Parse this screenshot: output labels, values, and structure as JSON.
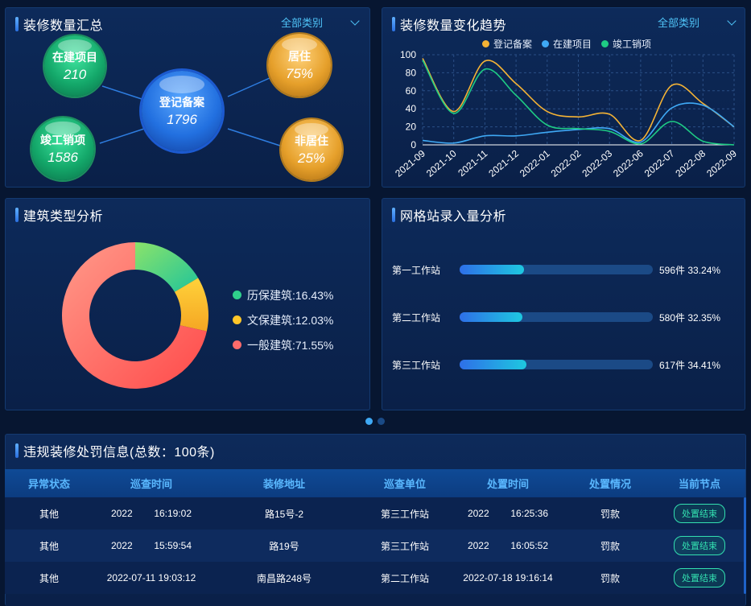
{
  "summary": {
    "title": "装修数量汇总",
    "filter": "全部类别",
    "center": {
      "label": "登记备案",
      "value": "1796"
    },
    "in_progress": {
      "label": "在建项目",
      "value": "210"
    },
    "completed": {
      "label": "竣工销项",
      "value": "1586"
    },
    "resident": {
      "label": "居住",
      "value": "75%"
    },
    "non_resident": {
      "label": "非居住",
      "value": "25%"
    }
  },
  "trend": {
    "title": "装修数量变化趋势",
    "filter": "全部类别",
    "legend": [
      "登记备案",
      "在建项目",
      "竣工销项"
    ],
    "colors": [
      "#f5b335",
      "#3fa9f5",
      "#1ecb84"
    ]
  },
  "chart_data": [
    {
      "type": "line",
      "x": [
        "2021-09",
        "2021-10",
        "2021-11",
        "2021-12",
        "2022-01",
        "2022-02",
        "2022-03",
        "2022-06",
        "2022-07",
        "2022-08",
        "2022-09"
      ],
      "series": [
        {
          "name": "登记备案",
          "values": [
            96,
            37,
            93,
            68,
            37,
            31,
            34,
            5,
            66,
            46,
            20
          ]
        },
        {
          "name": "在建项目",
          "values": [
            5,
            2,
            10,
            10,
            14,
            17,
            18,
            3,
            41,
            44,
            20
          ]
        },
        {
          "name": "竣工销项",
          "values": [
            94,
            35,
            84,
            55,
            22,
            18,
            15,
            1,
            26,
            4,
            0
          ]
        }
      ],
      "ylim": [
        0,
        100
      ],
      "yticks": [
        "0",
        "20",
        "40",
        "60",
        "80",
        "100"
      ],
      "grid": true,
      "legend_position": "top"
    },
    {
      "type": "pie",
      "labels": [
        "历保建筑",
        "文保建筑",
        "一般建筑"
      ],
      "values": [
        16.43,
        12.03,
        71.55
      ],
      "donut": true
    }
  ],
  "building": {
    "title": "建筑类型分析",
    "legend": [
      {
        "label": "历保建筑:16.43%",
        "color": "#2fd08c"
      },
      {
        "label": "文保建筑:12.03%",
        "color": "#ffc629"
      },
      {
        "label": "一般建筑:71.55%",
        "color": "#ff6b6b"
      }
    ]
  },
  "stations": {
    "title": "网格站录入量分析",
    "rows": [
      {
        "name": "第一工作站",
        "value": "596件 33.24%",
        "ratio": 0.3324
      },
      {
        "name": "第二工作站",
        "value": "580件 32.35%",
        "ratio": 0.3235
      },
      {
        "name": "第三工作站",
        "value": "617件 34.41%",
        "ratio": 0.3441
      }
    ]
  },
  "penalty": {
    "title": "违规装修处罚信息(总数：100条)",
    "headers": [
      "异常状态",
      "巡查时间",
      "装修地址",
      "巡查单位",
      "处置时间",
      "处置情况",
      "当前节点"
    ],
    "rows": [
      [
        "其他",
        "2022        16:19:02",
        "路15号-2",
        "第三工作站",
        "2022        16:25:36",
        "罚款",
        "处置结束"
      ],
      [
        "其他",
        "2022        15:59:54",
        "路19号",
        "第三工作站",
        "2022        16:05:52",
        "罚款",
        "处置结束"
      ],
      [
        "其他",
        "2022-07-11 19:03:12",
        "南昌路248号",
        "第二工作站",
        "2022-07-18 19:16:14",
        "罚款",
        "处置结束"
      ]
    ]
  },
  "pager": {
    "active": 0,
    "count": 2
  }
}
